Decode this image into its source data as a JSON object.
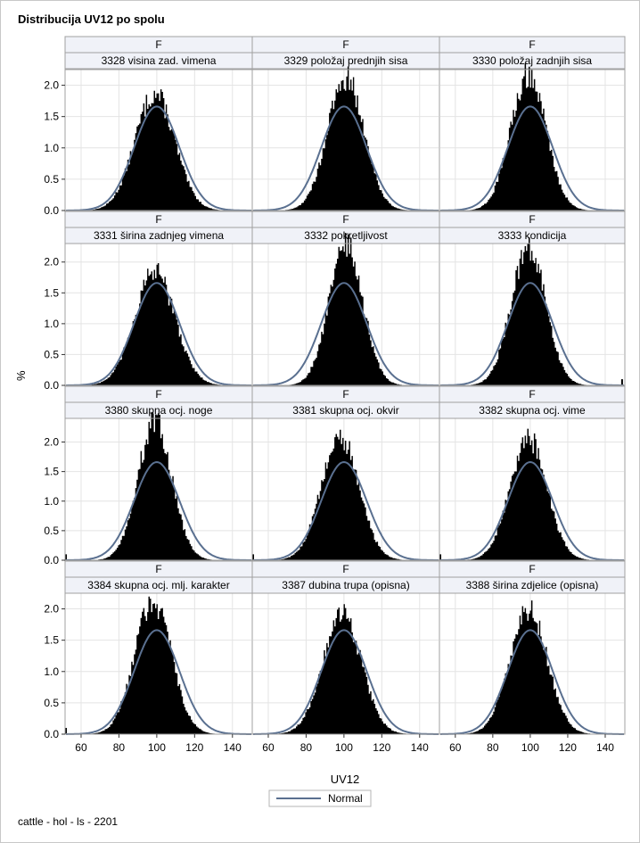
{
  "title": "Distribucija UV12 po spolu",
  "ylabel": "%",
  "xlabel": "UV12",
  "footer": "cattle - hol - ls - 2201",
  "legend": {
    "label": "Normal",
    "placement": "bottom-center"
  },
  "colors": {
    "bar": "#000000",
    "curve": "#5a7090",
    "header_bg": "#f0f2f8",
    "grid": "#e4e4e4",
    "border": "#a0a0a0"
  },
  "chart_data": {
    "type": "bar",
    "title": "Distribucija UV12 po spolu",
    "xlabel": "UV12",
    "ylabel": "%",
    "xlim": [
      52,
      150
    ],
    "xticks": [
      60,
      80,
      100,
      120,
      140
    ],
    "grid": true,
    "normal_curve": {
      "name": "Normal",
      "mean": 100,
      "sd": 12,
      "peak": 1.66
    },
    "panels": [
      {
        "group": "F",
        "label": "3328 visina zad. vimena",
        "yticks": [
          0.0,
          0.5,
          1.0,
          1.5,
          2.0
        ],
        "ylim": [
          0,
          2.25
        ],
        "peak": 1.86,
        "mode": 99,
        "sd": 10.5,
        "outliers": []
      },
      {
        "group": "F",
        "label": "3329 položaj prednjih sisa",
        "yticks": [
          0.0,
          0.5,
          1.0,
          1.5,
          2.0
        ],
        "ylim": [
          0,
          2.25
        ],
        "peak": 2.12,
        "mode": 101,
        "sd": 9.6,
        "outliers": []
      },
      {
        "group": "F",
        "label": "3330 položaj zadnjih sisa",
        "yticks": [
          0.0,
          0.5,
          1.0,
          1.5,
          2.0
        ],
        "ylim": [
          0,
          2.25
        ],
        "peak": 2.18,
        "mode": 99,
        "sd": 9.4,
        "outliers": []
      },
      {
        "group": "F",
        "label": "3331 širina zadnjeg vimena",
        "yticks": [
          0.0,
          0.5,
          1.0,
          1.5,
          2.0
        ],
        "ylim": [
          0,
          2.3
        ],
        "peak": 1.84,
        "mode": 99,
        "sd": 10.6,
        "outliers": []
      },
      {
        "group": "F",
        "label": "3332 pokretljivost",
        "yticks": [
          0.0,
          0.5,
          1.0,
          1.5,
          2.0
        ],
        "ylim": [
          0,
          2.3
        ],
        "peak": 2.28,
        "mode": 101,
        "sd": 8.9,
        "outliers": []
      },
      {
        "group": "F",
        "label": "3333 kondicija",
        "yticks": [
          0.0,
          0.5,
          1.0,
          1.5,
          2.0
        ],
        "ylim": [
          0,
          2.3
        ],
        "peak": 2.24,
        "mode": 99,
        "sd": 9.2,
        "outliers": [
          149
        ]
      },
      {
        "group": "F",
        "label": "3380 skupna ocj. noge",
        "yticks": [
          0.0,
          0.5,
          1.0,
          1.5,
          2.0
        ],
        "ylim": [
          0,
          2.4
        ],
        "peak": 2.33,
        "mode": 99,
        "sd": 9.0,
        "outliers": [
          52
        ]
      },
      {
        "group": "F",
        "label": "3381 skupna ocj. okvir",
        "yticks": [
          0.0,
          0.5,
          1.0,
          1.5,
          2.0
        ],
        "ylim": [
          0,
          2.4
        ],
        "peak": 2.08,
        "mode": 98,
        "sd": 9.9,
        "outliers": [
          52
        ]
      },
      {
        "group": "F",
        "label": "3382 skupna ocj. vime",
        "yticks": [
          0.0,
          0.5,
          1.0,
          1.5,
          2.0
        ],
        "ylim": [
          0,
          2.4
        ],
        "peak": 2.06,
        "mode": 99,
        "sd": 9.8,
        "outliers": [
          52
        ]
      },
      {
        "group": "F",
        "label": "3384 skupna ocj. mlj. karakter",
        "yticks": [
          0.0,
          0.5,
          1.0,
          1.5,
          2.0
        ],
        "ylim": [
          0,
          2.25
        ],
        "peak": 2.13,
        "mode": 98,
        "sd": 9.7,
        "outliers": [
          52
        ]
      },
      {
        "group": "F",
        "label": "3387 dubina trupa (opisna)",
        "yticks": [
          0.0,
          0.5,
          1.0,
          1.5,
          2.0
        ],
        "ylim": [
          0,
          2.25
        ],
        "peak": 1.91,
        "mode": 99,
        "sd": 10.2,
        "outliers": []
      },
      {
        "group": "F",
        "label": "3388 širina zdjelice (opisna)",
        "yticks": [
          0.0,
          0.5,
          1.0,
          1.5,
          2.0
        ],
        "ylim": [
          0,
          2.25
        ],
        "peak": 2.0,
        "mode": 99,
        "sd": 10.0,
        "outliers": []
      }
    ]
  }
}
